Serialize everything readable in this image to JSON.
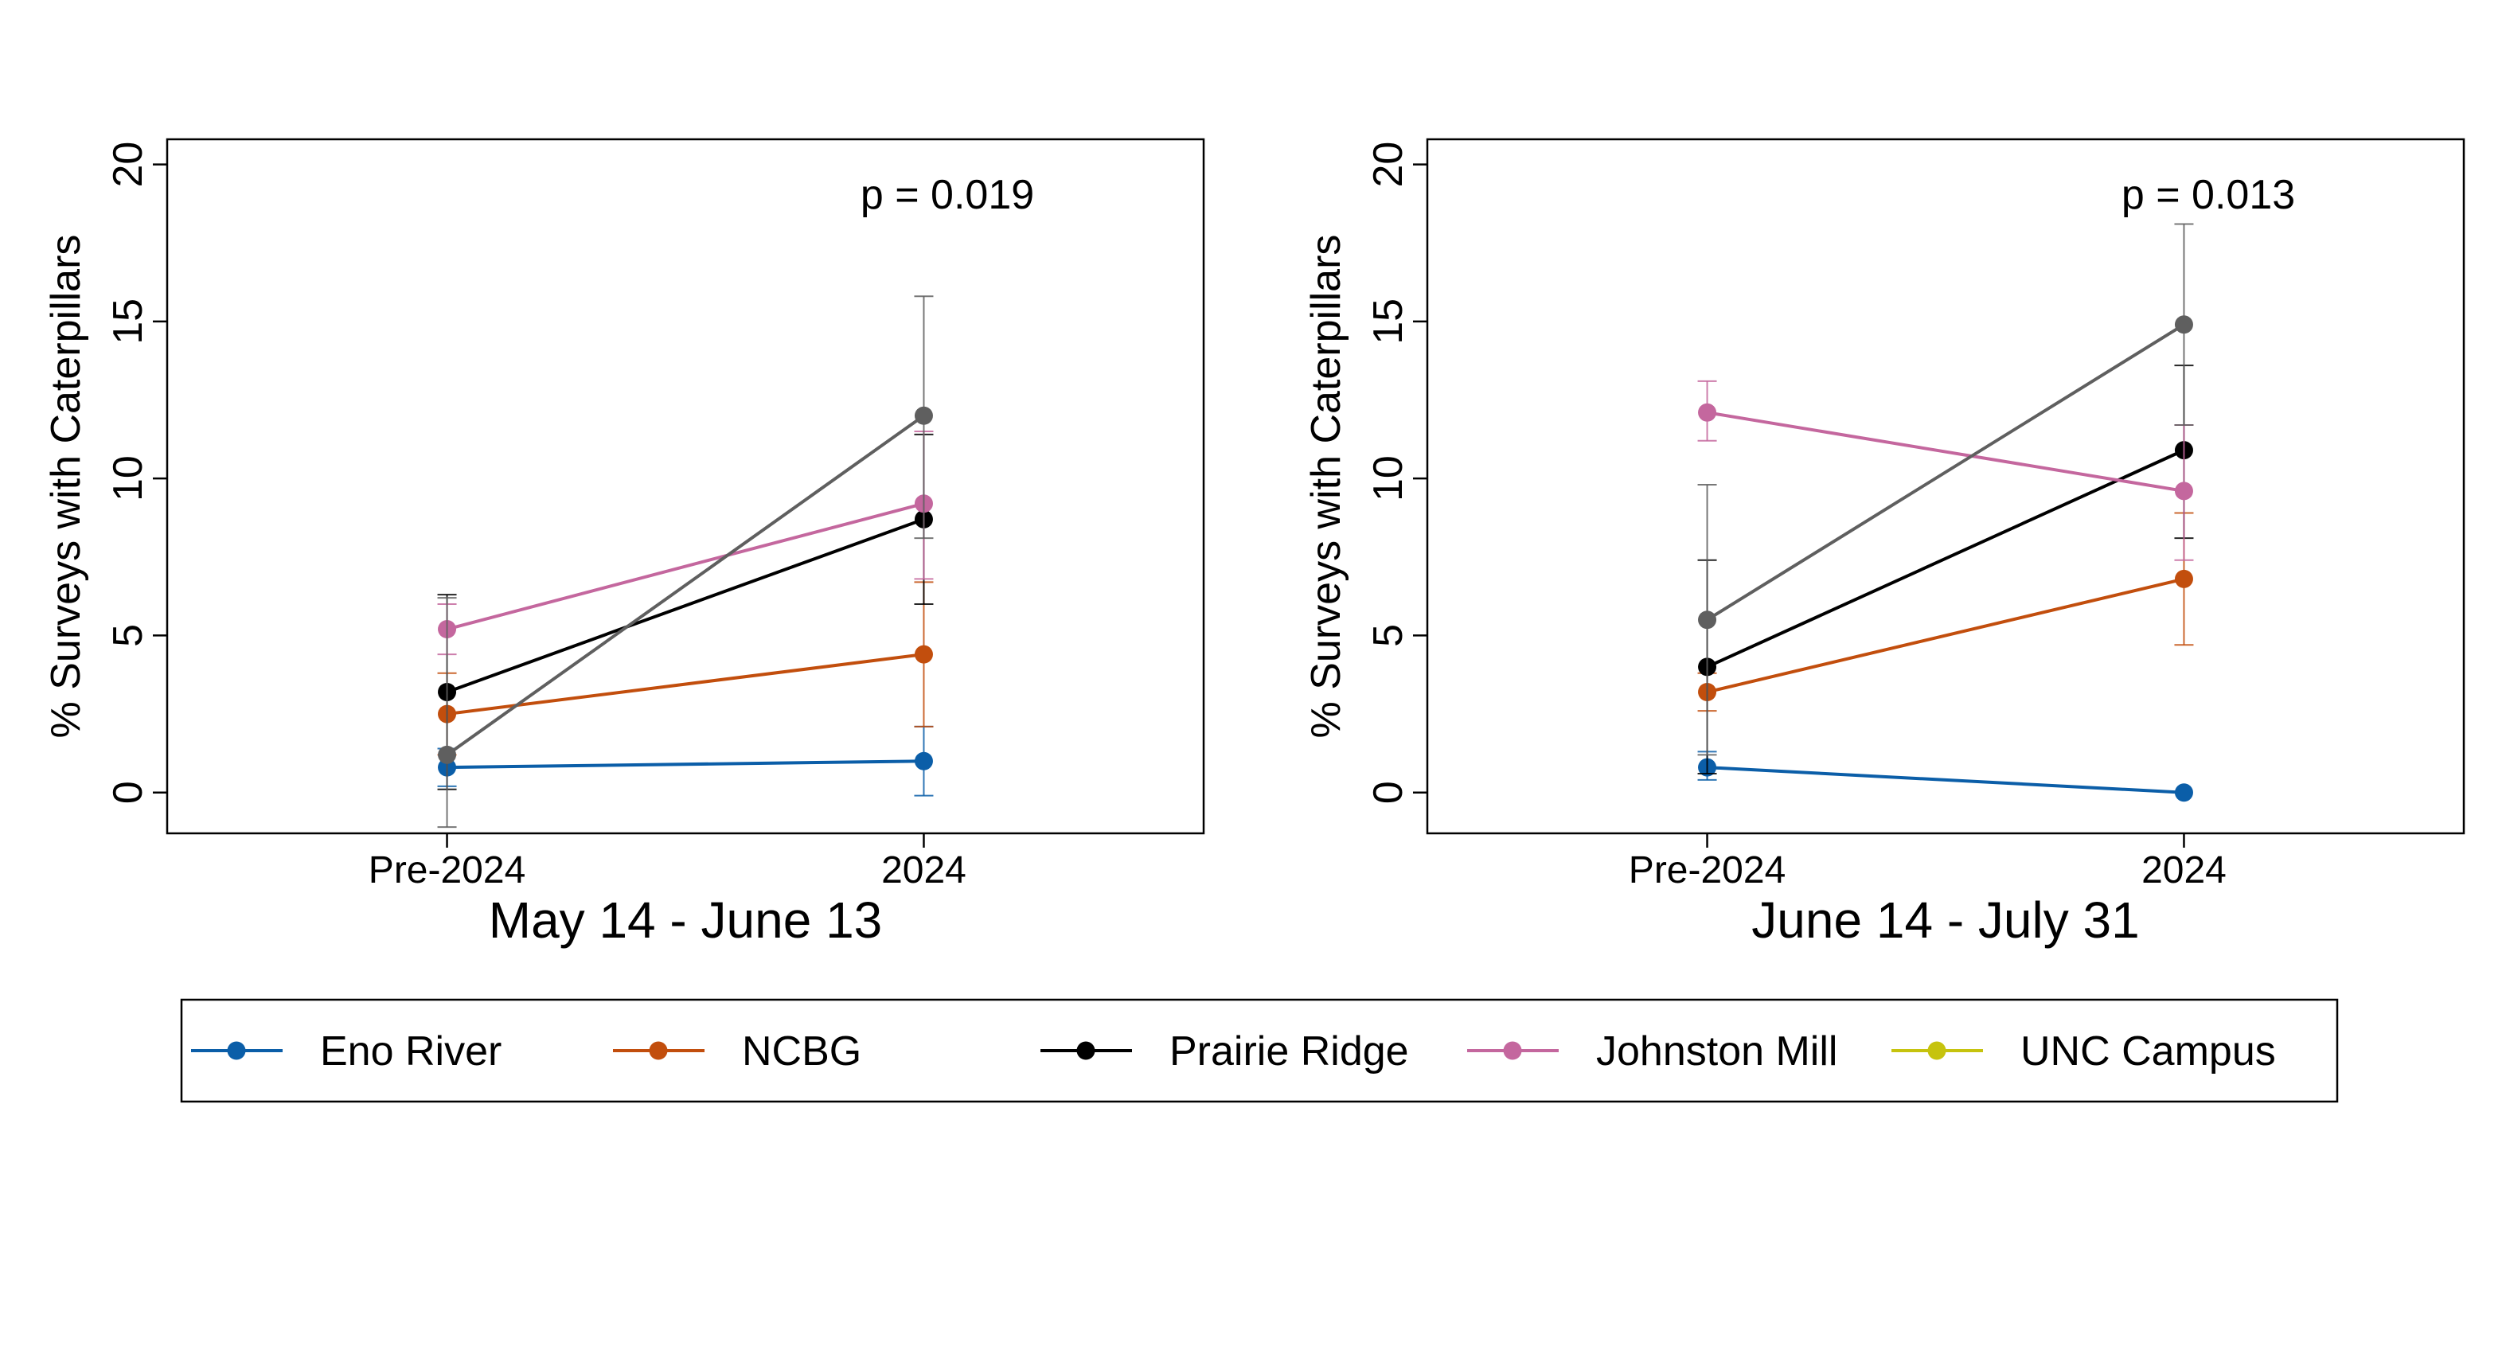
{
  "chart_data": [
    {
      "type": "line",
      "title": "May 14 - June 13",
      "annotation": "p = 0.019",
      "ylabel": "% Surveys with Caterpillars",
      "xlabel": "",
      "categories": [
        "Pre-2024",
        "2024"
      ],
      "ylim": [
        -1.3,
        20.8
      ],
      "yticks": [
        0,
        5,
        10,
        15,
        20
      ],
      "grid": false,
      "series": [
        {
          "name": "Eno River",
          "color": "#0b5ea8",
          "values": [
            0.8,
            1.0
          ],
          "err_low": [
            0.2,
            -0.1
          ],
          "err_high": [
            1.4,
            2.1
          ]
        },
        {
          "name": "NCBG",
          "color": "#c24e0d",
          "values": [
            2.5,
            4.4
          ],
          "err_low": [
            1.2,
            2.1
          ],
          "err_high": [
            3.8,
            6.7
          ]
        },
        {
          "name": "Prairie Ridge",
          "color": "#000000",
          "values": [
            3.2,
            8.7
          ],
          "err_low": [
            0.1,
            6.0
          ],
          "err_high": [
            6.3,
            11.4
          ]
        },
        {
          "name": "Johnston Mill",
          "color": "#c4679e",
          "values": [
            5.2,
            9.2
          ],
          "err_low": [
            4.4,
            6.8
          ],
          "err_high": [
            6.0,
            11.5
          ]
        },
        {
          "name": "",
          "color": "#5f5f5f",
          "values": [
            1.2,
            12.0
          ],
          "err_low": [
            -1.1,
            8.1
          ],
          "err_high": [
            6.2,
            15.8
          ]
        }
      ]
    },
    {
      "type": "line",
      "title": "June 14 - July 31",
      "annotation": "p = 0.013",
      "ylabel": "% Surveys with Caterpillars",
      "xlabel": "",
      "categories": [
        "Pre-2024",
        "2024"
      ],
      "ylim": [
        -1.3,
        20.8
      ],
      "yticks": [
        0,
        5,
        10,
        15,
        20
      ],
      "grid": false,
      "series": [
        {
          "name": "Eno River",
          "color": "#0b5ea8",
          "values": [
            0.8,
            0.0
          ],
          "err_low": [
            0.4,
            null
          ],
          "err_high": [
            1.3,
            null
          ]
        },
        {
          "name": "NCBG",
          "color": "#c24e0d",
          "values": [
            3.2,
            6.8
          ],
          "err_low": [
            2.6,
            4.7
          ],
          "err_high": [
            3.8,
            8.9
          ]
        },
        {
          "name": "Prairie Ridge",
          "color": "#000000",
          "values": [
            4.0,
            10.9
          ],
          "err_low": [
            0.6,
            8.1
          ],
          "err_high": [
            7.4,
            13.6
          ]
        },
        {
          "name": "Johnston Mill",
          "color": "#c4679e",
          "values": [
            12.1,
            9.6
          ],
          "err_low": [
            11.2,
            7.4
          ],
          "err_high": [
            13.1,
            11.7
          ]
        },
        {
          "name": "",
          "color": "#5f5f5f",
          "values": [
            5.5,
            14.9
          ],
          "err_low": [
            1.2,
            11.7
          ],
          "err_high": [
            9.8,
            18.1
          ]
        }
      ]
    }
  ],
  "legend": {
    "placement": "bottom",
    "items": [
      {
        "label": "Eno River",
        "color": "#0b5ea8"
      },
      {
        "label": "NCBG",
        "color": "#c24e0d"
      },
      {
        "label": "Prairie Ridge",
        "color": "#000000"
      },
      {
        "label": "Johnston Mill",
        "color": "#c4679e"
      },
      {
        "label": "UNC Campus",
        "color": "#c6c30e"
      }
    ]
  }
}
